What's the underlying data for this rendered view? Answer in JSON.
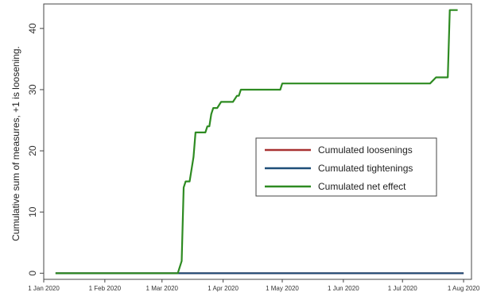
{
  "chart_data": {
    "type": "line",
    "title": "",
    "xlabel": "",
    "ylabel": "Cumulative sum of measures, +1 is loosening.",
    "x_range": [
      "2020-01-01",
      "2020-08-05"
    ],
    "ylim": [
      -1,
      44
    ],
    "y_ticks": [
      0,
      10,
      20,
      30,
      40
    ],
    "x_ticks": [
      {
        "date": "2020-01-01",
        "label": "1 Jan 2020"
      },
      {
        "date": "2020-02-01",
        "label": "1 Feb 2020"
      },
      {
        "date": "2020-03-01",
        "label": "1 Mar 2020"
      },
      {
        "date": "2020-04-01",
        "label": "1 Apr 2020"
      },
      {
        "date": "2020-05-01",
        "label": "1 May 2020"
      },
      {
        "date": "2020-06-01",
        "label": "1 Jun 2020"
      },
      {
        "date": "2020-07-01",
        "label": "1 Jul 2020"
      },
      {
        "date": "2020-08-01",
        "label": "1 Aug 2020"
      }
    ],
    "grid": false,
    "legend_position": "center-right",
    "series": [
      {
        "name": "Cumulated loosenings",
        "color": "#a83232",
        "points": [
          [
            "2020-01-07",
            0
          ],
          [
            "2020-08-01",
            0
          ]
        ]
      },
      {
        "name": "Cumulated tightenings",
        "color": "#1f4e79",
        "points": [
          [
            "2020-01-07",
            0
          ],
          [
            "2020-08-01",
            0
          ]
        ]
      },
      {
        "name": "Cumulated net effect",
        "color": "#2e8b22",
        "points": [
          [
            "2020-01-07",
            0
          ],
          [
            "2020-03-09",
            0
          ],
          [
            "2020-03-11",
            2
          ],
          [
            "2020-03-12",
            14
          ],
          [
            "2020-03-13",
            15
          ],
          [
            "2020-03-15",
            15
          ],
          [
            "2020-03-17",
            19
          ],
          [
            "2020-03-18",
            23
          ],
          [
            "2020-03-23",
            23
          ],
          [
            "2020-03-24",
            24
          ],
          [
            "2020-03-25",
            24
          ],
          [
            "2020-03-26",
            26
          ],
          [
            "2020-03-27",
            27
          ],
          [
            "2020-03-29",
            27
          ],
          [
            "2020-03-31",
            28
          ],
          [
            "2020-04-06",
            28
          ],
          [
            "2020-04-08",
            29
          ],
          [
            "2020-04-09",
            29
          ],
          [
            "2020-04-10",
            30
          ],
          [
            "2020-04-30",
            30
          ],
          [
            "2020-05-01",
            31
          ],
          [
            "2020-07-15",
            31
          ],
          [
            "2020-07-18",
            32
          ],
          [
            "2020-07-24",
            32
          ],
          [
            "2020-07-25",
            43
          ],
          [
            "2020-07-29",
            43
          ]
        ]
      }
    ]
  }
}
